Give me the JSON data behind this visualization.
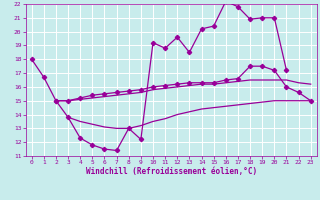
{
  "xlabel": "Windchill (Refroidissement éolien,°C)",
  "xlim": [
    -0.5,
    23.5
  ],
  "ylim": [
    11,
    22
  ],
  "xticks": [
    0,
    1,
    2,
    3,
    4,
    5,
    6,
    7,
    8,
    9,
    10,
    11,
    12,
    13,
    14,
    15,
    16,
    17,
    18,
    19,
    20,
    21,
    22,
    23
  ],
  "yticks": [
    11,
    12,
    13,
    14,
    15,
    16,
    17,
    18,
    19,
    20,
    21,
    22
  ],
  "background_color": "#c8ecec",
  "grid_color": "#b0d8d8",
  "line_color": "#990099",
  "l1x": [
    0,
    1,
    2,
    3,
    4,
    5,
    6,
    7,
    8,
    9,
    10,
    11,
    12,
    13,
    14,
    15,
    16,
    17,
    18,
    19,
    20,
    21
  ],
  "l1y": [
    18.0,
    16.7,
    15.0,
    13.8,
    12.3,
    11.8,
    11.5,
    11.4,
    13.0,
    12.2,
    19.2,
    18.8,
    19.6,
    18.5,
    20.2,
    20.4,
    22.2,
    21.8,
    20.9,
    21.0,
    21.0,
    17.2
  ],
  "l2x": [
    2,
    3,
    4,
    5,
    6,
    7,
    8,
    9,
    10,
    11,
    12,
    13,
    14,
    15,
    16,
    17,
    18,
    19,
    20,
    21,
    22,
    23
  ],
  "l2y": [
    15.0,
    15.0,
    15.2,
    15.4,
    15.5,
    15.6,
    15.7,
    15.8,
    16.0,
    16.1,
    16.2,
    16.3,
    16.3,
    16.3,
    16.5,
    16.6,
    17.5,
    17.5,
    17.2,
    16.0,
    15.6,
    15.0
  ],
  "l3x": [
    2,
    3,
    4,
    5,
    6,
    7,
    8,
    9,
    10,
    11,
    12,
    13,
    14,
    15,
    16,
    17,
    18,
    19,
    20,
    21,
    22,
    23
  ],
  "l3y": [
    15.0,
    15.0,
    15.1,
    15.2,
    15.3,
    15.4,
    15.5,
    15.6,
    15.8,
    15.9,
    16.0,
    16.1,
    16.2,
    16.2,
    16.3,
    16.4,
    16.5,
    16.5,
    16.5,
    16.5,
    16.3,
    16.2
  ],
  "l4x": [
    3,
    4,
    5,
    6,
    7,
    8,
    9,
    10,
    11,
    12,
    13,
    14,
    15,
    16,
    17,
    18,
    19,
    20,
    21,
    22,
    23
  ],
  "l4y": [
    13.8,
    13.5,
    13.3,
    13.1,
    13.0,
    13.0,
    13.2,
    13.5,
    13.7,
    14.0,
    14.2,
    14.4,
    14.5,
    14.6,
    14.7,
    14.8,
    14.9,
    15.0,
    15.0,
    15.0,
    15.0
  ]
}
